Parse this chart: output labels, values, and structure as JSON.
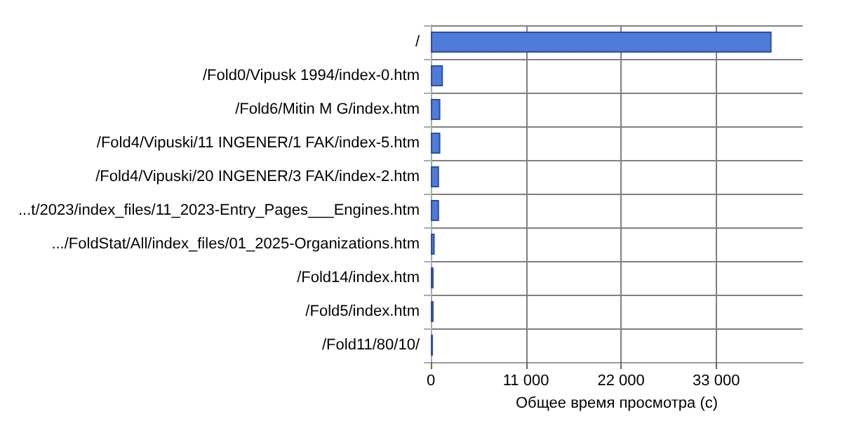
{
  "chart_data": {
    "type": "bar",
    "orientation": "horizontal",
    "xlabel": "Общее время просмотра (с)",
    "categories": [
      "/",
      "/Fold0/Vipusk 1994/index-0.htm",
      "/Fold6/Mitin M G/index.htm",
      "/Fold4/Vipuski/11 INGENER/1 FAK/index-5.htm",
      "/Fold4/Vipuski/20 INGENER/3 FAK/index-2.htm",
      "...t/2023/index_files/11_2023-Entry_Pages___Engines.htm",
      ".../FoldStat/All/index_files/01_2025-Organizations.htm",
      "/Fold14/index.htm",
      "/Fold5/index.htm",
      "/Fold11/80/10/"
    ],
    "values": [
      39400,
      1400,
      1100,
      1100,
      950,
      950,
      450,
      320,
      320,
      250
    ],
    "color": "#4f7bd9",
    "xlim": [
      0,
      43000
    ],
    "xticks": [
      {
        "value": 0,
        "label": "0"
      },
      {
        "value": 11000,
        "label": "11 000"
      },
      {
        "value": 22000,
        "label": "22 000"
      },
      {
        "value": 33000,
        "label": "33 000"
      }
    ],
    "grid": true
  }
}
